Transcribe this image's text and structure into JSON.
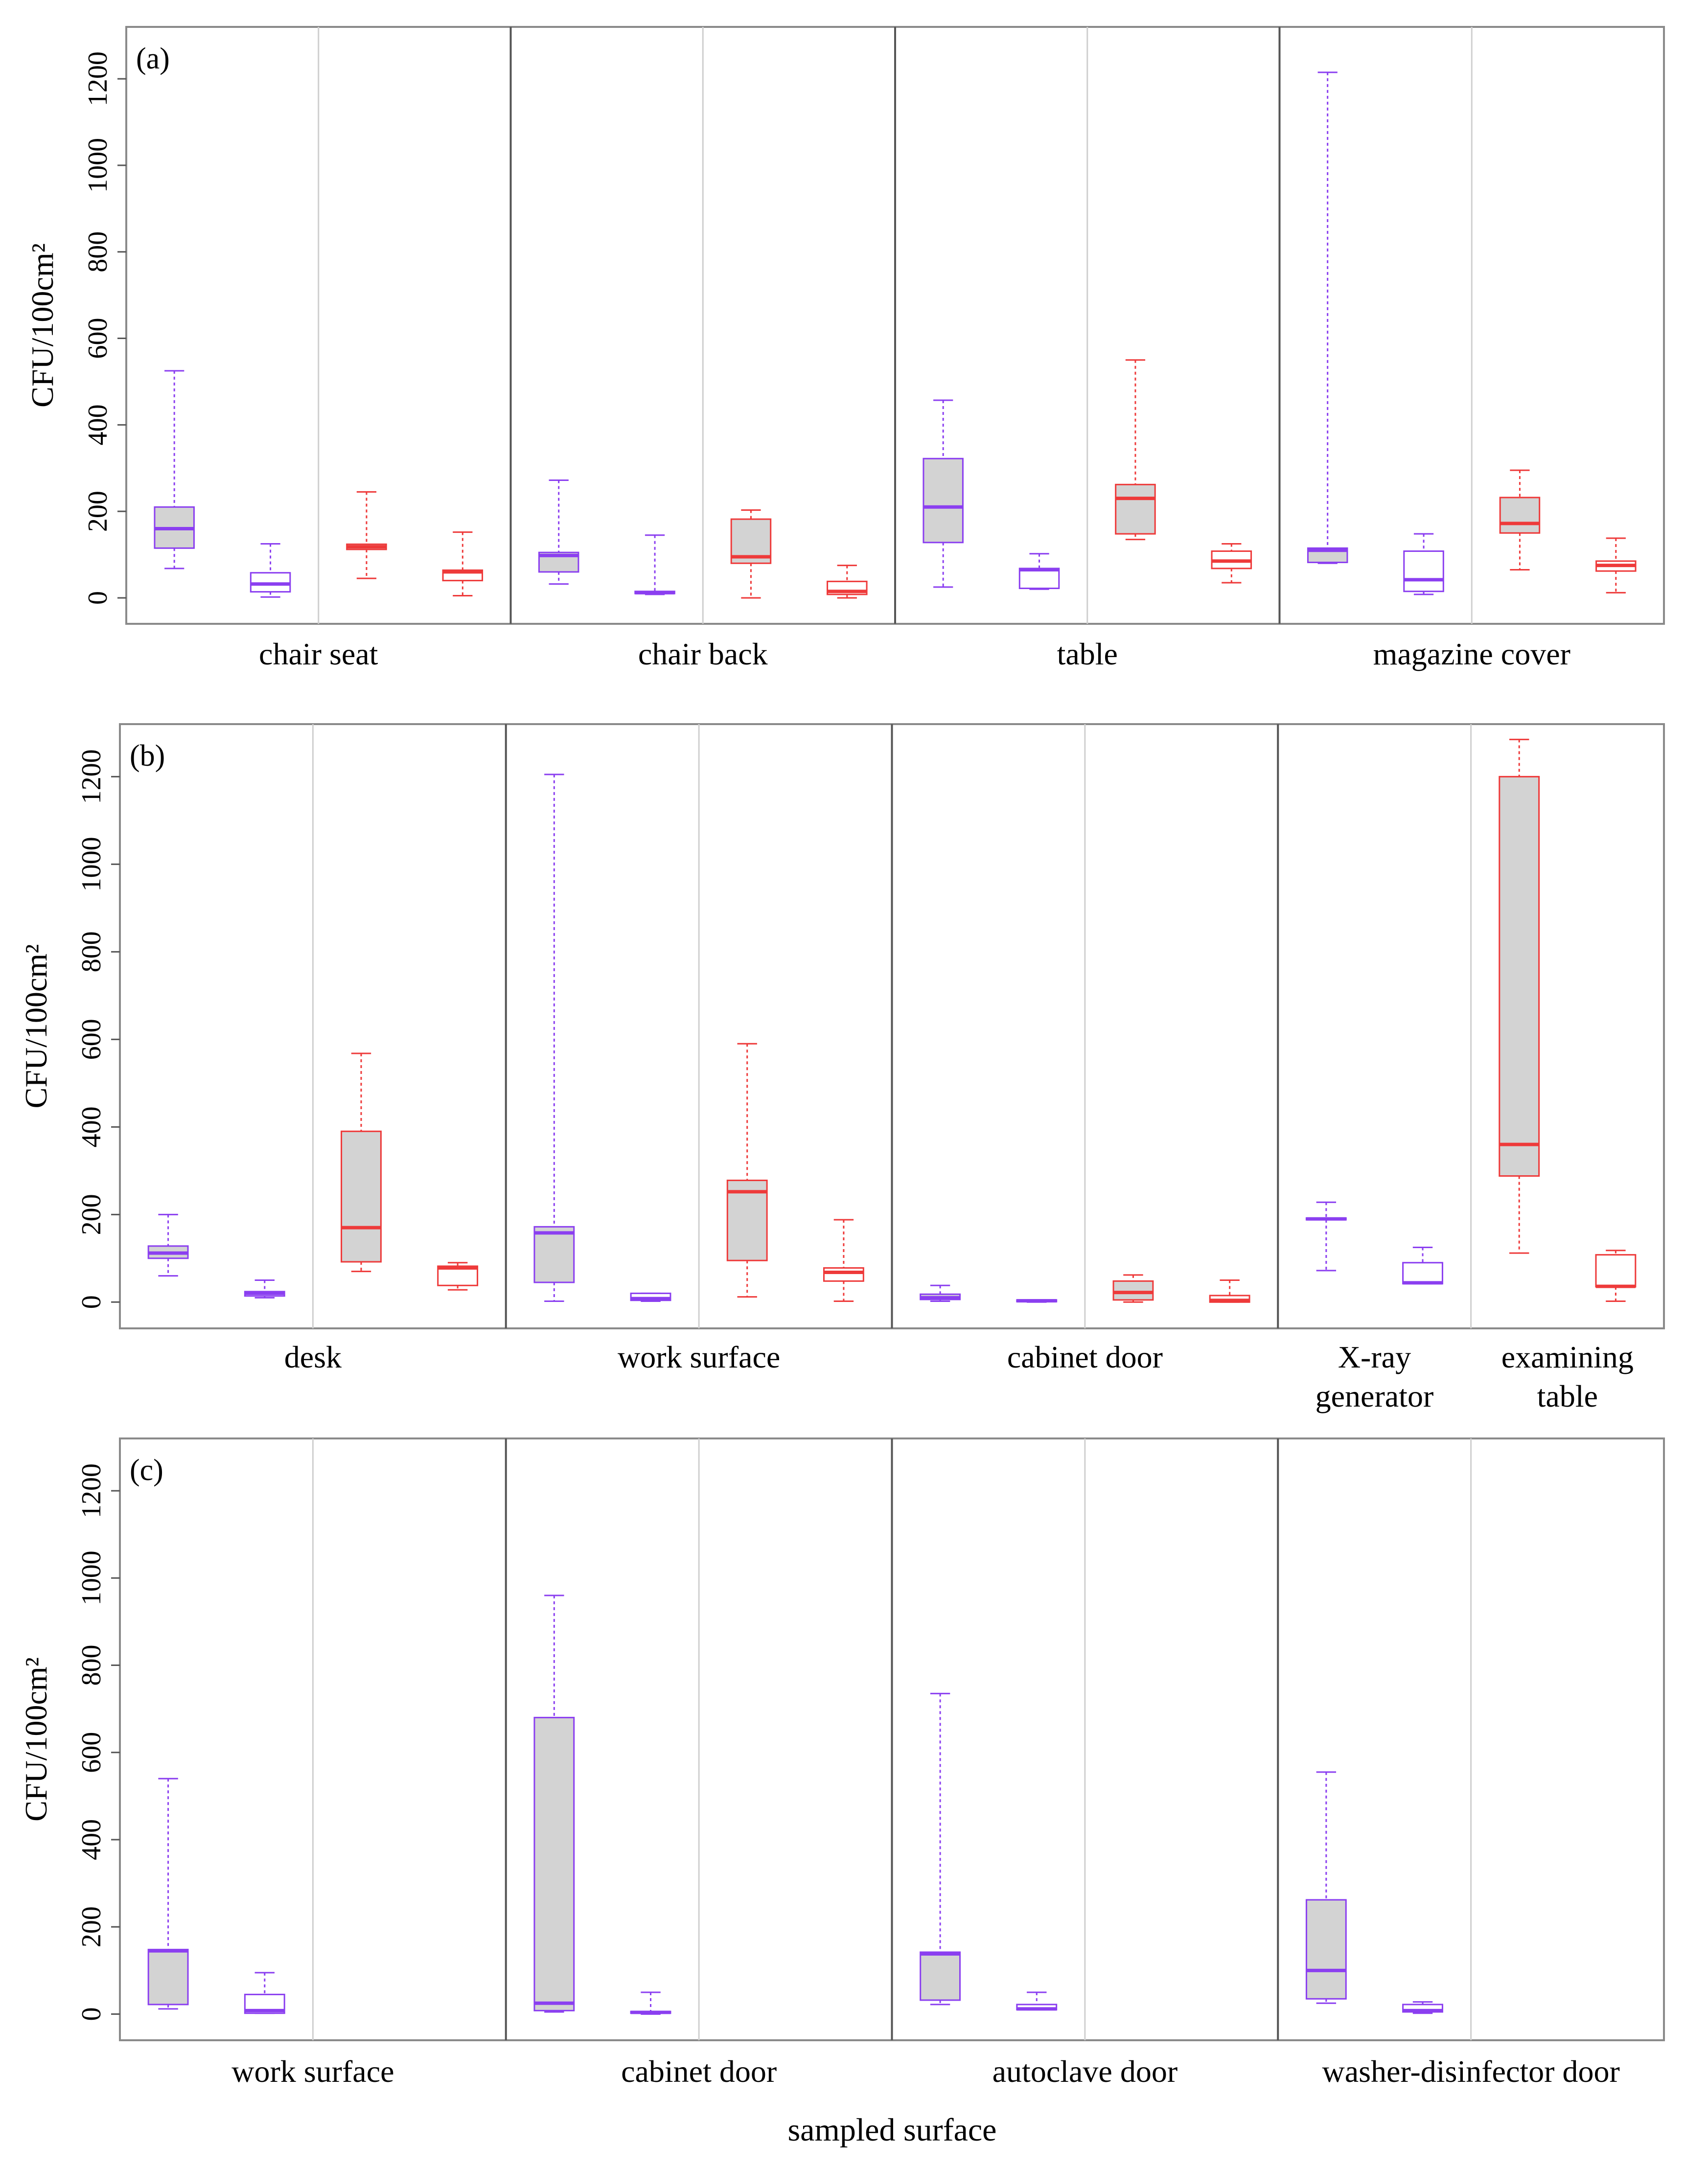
{
  "colors": {
    "purple": "#8b3ff0",
    "red": "#ee3a3a",
    "fill": "#d3d3d3",
    "panel_border": "#8a8a8a",
    "separator": "#555555",
    "subdivider": "#cfcfcf"
  },
  "xlabel": "sampled surface",
  "chart_data": [
    {
      "type": "box",
      "panel_label": "(a)",
      "ylabel": "CFU/100cm²",
      "ylim": [
        -60,
        1320
      ],
      "yticks": [
        0,
        200,
        400,
        600,
        800,
        1000,
        1200
      ],
      "groups": [
        {
          "label": [
            "chair seat"
          ],
          "subgroups": 2,
          "boxes": [
            {
              "color": "purple",
              "filled": true,
              "min": 68,
              "q1": 115,
              "median": 160,
              "q3": 210,
              "max": 525
            },
            {
              "color": "purple",
              "filled": false,
              "min": 2,
              "q1": 14,
              "median": 32,
              "q3": 58,
              "max": 125
            },
            {
              "color": "red",
              "filled": true,
              "min": 45,
              "q1": 112,
              "median": 118,
              "q3": 124,
              "max": 245
            },
            {
              "color": "red",
              "filled": false,
              "min": 5,
              "q1": 40,
              "median": 60,
              "q3": 64,
              "max": 152
            }
          ]
        },
        {
          "label": [
            "chair back"
          ],
          "subgroups": 2,
          "boxes": [
            {
              "color": "purple",
              "filled": true,
              "min": 32,
              "q1": 60,
              "median": 98,
              "q3": 105,
              "max": 272
            },
            {
              "color": "purple",
              "filled": false,
              "min": 8,
              "q1": 10,
              "median": 12,
              "q3": 15,
              "max": 145
            },
            {
              "color": "red",
              "filled": true,
              "min": 0,
              "q1": 80,
              "median": 95,
              "q3": 182,
              "max": 203
            },
            {
              "color": "red",
              "filled": false,
              "min": 0,
              "q1": 8,
              "median": 15,
              "q3": 38,
              "max": 75
            }
          ]
        },
        {
          "label": [
            "table"
          ],
          "subgroups": 2,
          "boxes": [
            {
              "color": "purple",
              "filled": true,
              "min": 25,
              "q1": 128,
              "median": 210,
              "q3": 322,
              "max": 457
            },
            {
              "color": "purple",
              "filled": false,
              "min": 20,
              "q1": 22,
              "median": 65,
              "q3": 68,
              "max": 102
            },
            {
              "color": "red",
              "filled": true,
              "min": 135,
              "q1": 148,
              "median": 230,
              "q3": 262,
              "max": 550
            },
            {
              "color": "red",
              "filled": false,
              "min": 35,
              "q1": 68,
              "median": 85,
              "q3": 108,
              "max": 125
            }
          ]
        },
        {
          "label": [
            "magazine cover"
          ],
          "subgroups": 2,
          "boxes": [
            {
              "color": "purple",
              "filled": true,
              "min": 80,
              "q1": 82,
              "median": 110,
              "q3": 115,
              "max": 1215
            },
            {
              "color": "purple",
              "filled": false,
              "min": 8,
              "q1": 15,
              "median": 42,
              "q3": 108,
              "max": 148
            },
            {
              "color": "red",
              "filled": true,
              "min": 65,
              "q1": 150,
              "median": 172,
              "q3": 232,
              "max": 295
            },
            {
              "color": "red",
              "filled": false,
              "min": 12,
              "q1": 62,
              "median": 75,
              "q3": 85,
              "max": 138
            }
          ]
        }
      ]
    },
    {
      "type": "box",
      "panel_label": "(b)",
      "ylabel": "CFU/100cm²",
      "ylim": [
        -60,
        1320
      ],
      "yticks": [
        0,
        200,
        400,
        600,
        800,
        1000,
        1200
      ],
      "groups": [
        {
          "label": [
            "desk"
          ],
          "subgroups": 2,
          "boxes": [
            {
              "color": "purple",
              "filled": true,
              "min": 60,
              "q1": 100,
              "median": 112,
              "q3": 128,
              "max": 200
            },
            {
              "color": "purple",
              "filled": false,
              "min": 10,
              "q1": 14,
              "median": 20,
              "q3": 24,
              "max": 50
            },
            {
              "color": "red",
              "filled": true,
              "min": 70,
              "q1": 92,
              "median": 170,
              "q3": 390,
              "max": 568
            },
            {
              "color": "red",
              "filled": false,
              "min": 28,
              "q1": 38,
              "median": 78,
              "q3": 82,
              "max": 90
            }
          ]
        },
        {
          "label": [
            "work surface"
          ],
          "subgroups": 2,
          "boxes": [
            {
              "color": "purple",
              "filled": true,
              "min": 2,
              "q1": 45,
              "median": 158,
              "q3": 172,
              "max": 1205
            },
            {
              "color": "purple",
              "filled": false,
              "min": 2,
              "q1": 4,
              "median": 8,
              "q3": 20,
              "max": 20
            },
            {
              "color": "red",
              "filled": true,
              "min": 12,
              "q1": 95,
              "median": 252,
              "q3": 278,
              "max": 590
            },
            {
              "color": "red",
              "filled": false,
              "min": 2,
              "q1": 48,
              "median": 68,
              "q3": 78,
              "max": 188
            }
          ]
        },
        {
          "label": [
            "cabinet door"
          ],
          "subgroups": 2,
          "boxes": [
            {
              "color": "purple",
              "filled": true,
              "min": 2,
              "q1": 6,
              "median": 10,
              "q3": 18,
              "max": 38
            },
            {
              "color": "purple",
              "filled": false,
              "min": 0,
              "q1": 1,
              "median": 3,
              "q3": 5,
              "max": 5
            },
            {
              "color": "red",
              "filled": true,
              "min": 0,
              "q1": 5,
              "median": 22,
              "q3": 48,
              "max": 62
            },
            {
              "color": "red",
              "filled": false,
              "min": 0,
              "q1": 0,
              "median": 4,
              "q3": 15,
              "max": 50
            }
          ]
        },
        {
          "label": [
            "X-ray",
            "generator"
          ],
          "subgroups": 1,
          "boxes": [
            {
              "color": "purple",
              "filled": true,
              "min": 72,
              "q1": 188,
              "median": 190,
              "q3": 192,
              "max": 228
            },
            {
              "color": "purple",
              "filled": false,
              "min": 42,
              "q1": 42,
              "median": 44,
              "q3": 90,
              "max": 125
            }
          ]
        },
        {
          "label": [
            "examining",
            "table"
          ],
          "subgroups": 1,
          "boxes": [
            {
              "color": "red",
              "filled": true,
              "min": 112,
              "q1": 288,
              "median": 360,
              "q3": 1200,
              "max": 1285
            },
            {
              "color": "red",
              "filled": false,
              "min": 2,
              "q1": 35,
              "median": 36,
              "q3": 108,
              "max": 118
            }
          ]
        }
      ]
    },
    {
      "type": "box",
      "panel_label": "(c)",
      "ylabel": "CFU/100cm²",
      "ylim": [
        -60,
        1320
      ],
      "yticks": [
        0,
        200,
        400,
        600,
        800,
        1000,
        1200
      ],
      "groups": [
        {
          "label": [
            "work surface"
          ],
          "subgroups": 2,
          "boxes": [
            {
              "color": "purple",
              "filled": true,
              "min": 12,
              "q1": 22,
              "median": 145,
              "q3": 148,
              "max": 540
            },
            {
              "color": "purple",
              "filled": false,
              "min": 2,
              "q1": 2,
              "median": 8,
              "q3": 45,
              "max": 95
            }
          ]
        },
        {
          "label": [
            "cabinet door"
          ],
          "subgroups": 2,
          "boxes": [
            {
              "color": "purple",
              "filled": true,
              "min": 5,
              "q1": 8,
              "median": 25,
              "q3": 680,
              "max": 960
            },
            {
              "color": "purple",
              "filled": false,
              "min": 0,
              "q1": 2,
              "median": 4,
              "q3": 6,
              "max": 50
            }
          ]
        },
        {
          "label": [
            "autoclave door"
          ],
          "subgroups": 2,
          "boxes": [
            {
              "color": "purple",
              "filled": true,
              "min": 22,
              "q1": 32,
              "median": 138,
              "q3": 142,
              "max": 735
            },
            {
              "color": "purple",
              "filled": false,
              "min": 10,
              "q1": 10,
              "median": 12,
              "q3": 22,
              "max": 50
            }
          ]
        },
        {
          "label": [
            "washer-disinfector door"
          ],
          "subgroups": 2,
          "boxes": [
            {
              "color": "purple",
              "filled": true,
              "min": 25,
              "q1": 35,
              "median": 100,
              "q3": 262,
              "max": 555
            },
            {
              "color": "purple",
              "filled": false,
              "min": 2,
              "q1": 5,
              "median": 8,
              "q3": 22,
              "max": 28
            }
          ]
        }
      ]
    }
  ]
}
